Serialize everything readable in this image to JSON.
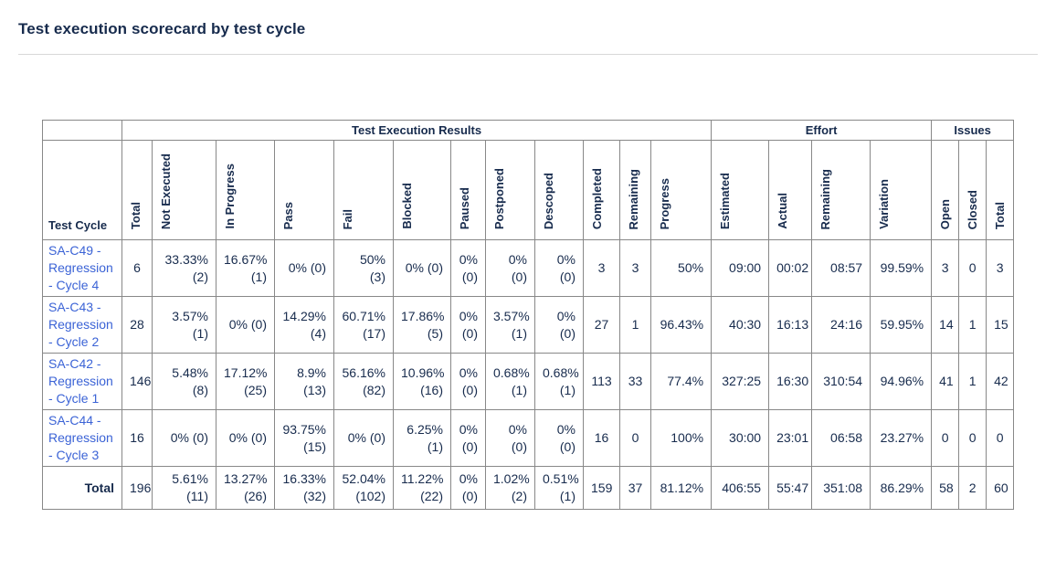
{
  "page": {
    "title": "Test execution scorecard by test cycle"
  },
  "colors": {
    "text": "#172B4D",
    "link": "#3B63D6",
    "border": "#888888",
    "divider": "#D8D8D8"
  },
  "table": {
    "groups": [
      "Test Execution Results",
      "Effort",
      "Issues"
    ],
    "first_col_header": "Test Cycle",
    "columns": [
      "Total",
      "Not Executed",
      "In Progress",
      "Pass",
      "Fail",
      "Blocked",
      "Paused",
      "Postponed",
      "Descoped",
      "Completed",
      "Remaining",
      "Progress",
      "Estimated",
      "Actual",
      "Remaining",
      "Variation",
      "Open",
      "Closed",
      "Total"
    ],
    "rows": [
      {
        "name": "SA-C49 - Regression - Cycle 4",
        "total_row": false,
        "cells": [
          "6",
          "33.33%\n(2)",
          "16.67%\n(1)",
          "0% (0)",
          "50%\n(3)",
          "0% (0)",
          "0%\n(0)",
          "0%\n(0)",
          "0%\n(0)",
          "3",
          "3",
          "50%",
          "09:00",
          "00:02",
          "08:57",
          "99.59%",
          "3",
          "0",
          "3"
        ]
      },
      {
        "name": "SA-C43 - Regression - Cycle 2",
        "total_row": false,
        "cells": [
          "28",
          "3.57%\n(1)",
          "0% (0)",
          "14.29%\n(4)",
          "60.71%\n(17)",
          "17.86%\n(5)",
          "0%\n(0)",
          "3.57%\n(1)",
          "0%\n(0)",
          "27",
          "1",
          "96.43%",
          "40:30",
          "16:13",
          "24:16",
          "59.95%",
          "14",
          "1",
          "15"
        ]
      },
      {
        "name": "SA-C42 - Regression - Cycle 1",
        "total_row": false,
        "cells": [
          "146",
          "5.48%\n(8)",
          "17.12%\n(25)",
          "8.9%\n(13)",
          "56.16%\n(82)",
          "10.96%\n(16)",
          "0%\n(0)",
          "0.68%\n(1)",
          "0.68%\n(1)",
          "113",
          "33",
          "77.4%",
          "327:25",
          "16:30",
          "310:54",
          "94.96%",
          "41",
          "1",
          "42"
        ]
      },
      {
        "name": "SA-C44 - Regression - Cycle 3",
        "total_row": false,
        "cells": [
          "16",
          "0% (0)",
          "0% (0)",
          "93.75%\n(15)",
          "0% (0)",
          "6.25%\n(1)",
          "0%\n(0)",
          "0%\n(0)",
          "0%\n(0)",
          "16",
          "0",
          "100%",
          "30:00",
          "23:01",
          "06:58",
          "23.27%",
          "0",
          "0",
          "0"
        ]
      },
      {
        "name": "Total",
        "total_row": true,
        "cells": [
          "196",
          "5.61%\n(11)",
          "13.27%\n(26)",
          "16.33%\n(32)",
          "52.04%\n(102)",
          "11.22%\n(22)",
          "0%\n(0)",
          "1.02%\n(2)",
          "0.51%\n(1)",
          "159",
          "37",
          "81.12%",
          "406:55",
          "55:47",
          "351:08",
          "86.29%",
          "58",
          "2",
          "60"
        ]
      }
    ]
  }
}
